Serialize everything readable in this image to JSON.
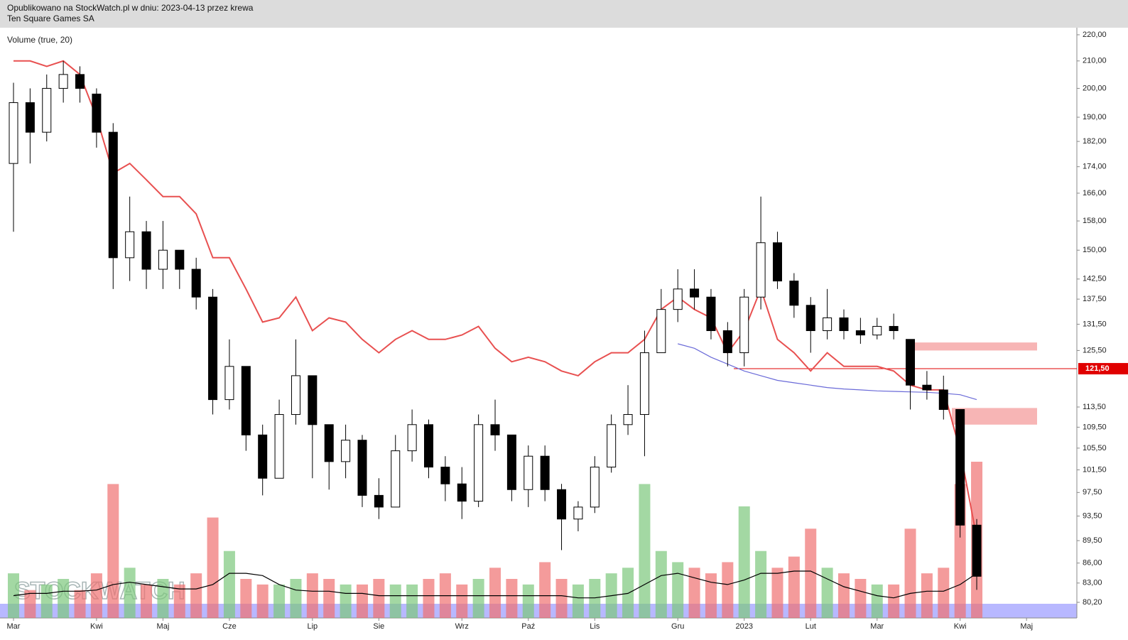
{
  "header": {
    "line1": "Opublikowano na StockWatch.pl w dniu: 2023-04-13 przez krewa",
    "line2": "Ten Square Games SA"
  },
  "chart_data": {
    "type": "candlestick",
    "log": true,
    "indicator_label": "Volume (true, 20)",
    "watermark": "STOCKWATCH",
    "categories": [
      "Mar",
      null,
      null,
      null,
      null,
      "Kwi",
      null,
      null,
      null,
      "Maj",
      null,
      null,
      null,
      "Cze",
      null,
      null,
      null,
      null,
      "Lip",
      null,
      null,
      null,
      "Sie",
      null,
      null,
      null,
      null,
      "Wrz",
      null,
      null,
      null,
      "Paź",
      null,
      null,
      null,
      "Lis",
      null,
      null,
      null,
      null,
      "Gru",
      null,
      null,
      null,
      "2023",
      null,
      null,
      null,
      "Lut",
      null,
      null,
      null,
      "Mar",
      null,
      null,
      null,
      null,
      "Kwi",
      null,
      null,
      null,
      "Maj"
    ],
    "open": [
      175,
      195,
      185,
      200,
      205,
      198,
      185,
      148,
      155,
      145,
      150,
      145,
      138,
      115,
      122,
      108,
      100,
      112,
      120,
      110,
      103,
      107,
      97,
      95,
      105,
      110,
      102,
      99,
      96,
      110,
      108,
      98,
      104,
      98,
      93,
      95,
      102,
      110,
      112,
      125,
      135,
      140,
      138,
      130,
      125,
      138,
      152,
      142,
      136,
      130,
      133,
      130,
      129,
      131,
      128,
      118,
      117,
      113,
      92,
      null,
      null,
      null
    ],
    "high": [
      202,
      200,
      205,
      210,
      208,
      200,
      188,
      165,
      158,
      158,
      150,
      148,
      140,
      128,
      122,
      110,
      115,
      128,
      120,
      110,
      110,
      108,
      100,
      108,
      113,
      111,
      104,
      102,
      112,
      115,
      108,
      106,
      106,
      99,
      96,
      104,
      112,
      118,
      130,
      140,
      145,
      145,
      140,
      132,
      140,
      165,
      155,
      144,
      138,
      140,
      135,
      133,
      133,
      134,
      128,
      121,
      120,
      113,
      93,
      null,
      null,
      null
    ],
    "low": [
      155,
      175,
      182,
      195,
      195,
      180,
      140,
      142,
      140,
      140,
      140,
      135,
      112,
      113,
      105,
      97,
      100,
      110,
      100,
      98,
      100,
      95,
      93,
      95,
      103,
      100,
      96,
      93,
      95,
      105,
      96,
      95,
      96,
      88,
      91,
      94,
      101,
      108,
      104,
      125,
      132,
      135,
      128,
      122,
      122,
      135,
      140,
      133,
      125,
      128,
      128,
      127,
      128,
      128,
      113,
      115,
      111,
      90,
      82,
      null,
      null,
      null
    ],
    "close": [
      195,
      185,
      200,
      205,
      200,
      185,
      148,
      155,
      145,
      150,
      145,
      138,
      115,
      122,
      108,
      100,
      112,
      120,
      110,
      103,
      107,
      97,
      95,
      105,
      110,
      102,
      99,
      96,
      110,
      108,
      98,
      104,
      98,
      93,
      95,
      102,
      110,
      112,
      125,
      135,
      140,
      138,
      130,
      125,
      138,
      152,
      142,
      136,
      130,
      133,
      130,
      129,
      131,
      130,
      118,
      117,
      113,
      92,
      84,
      null,
      null,
      null
    ],
    "overlays": [
      {
        "color": "#e85050",
        "values": [
          210,
          210,
          208,
          210,
          205,
          190,
          172,
          175,
          170,
          165,
          165,
          160,
          148,
          148,
          140,
          132,
          133,
          138,
          130,
          133,
          132,
          128,
          125,
          128,
          130,
          128,
          128,
          129,
          131,
          126,
          123,
          124,
          123,
          121,
          120,
          123,
          125,
          125,
          128,
          135,
          138,
          135,
          133,
          125,
          130,
          140,
          128,
          125,
          121,
          125,
          122,
          122,
          122,
          121,
          118,
          117,
          117,
          105,
          90,
          null,
          null,
          null
        ]
      },
      {
        "color": "#6a6ad8",
        "values": [
          null,
          null,
          null,
          null,
          null,
          null,
          null,
          null,
          null,
          null,
          null,
          null,
          null,
          null,
          null,
          null,
          null,
          null,
          null,
          null,
          null,
          null,
          null,
          null,
          null,
          null,
          null,
          null,
          null,
          null,
          null,
          null,
          null,
          null,
          null,
          null,
          null,
          null,
          null,
          null,
          127,
          126,
          124,
          122.5,
          121,
          120,
          119,
          118.5,
          118,
          117.5,
          117.2,
          117,
          116.8,
          116.7,
          116.6,
          116.5,
          116.3,
          116,
          115,
          null,
          null,
          null
        ]
      }
    ],
    "volume": {
      "up_color": "#7cc87c",
      "down_color": "#f07070",
      "average_color": "#000000",
      "values": [
        40,
        25,
        30,
        35,
        25,
        40,
        120,
        45,
        30,
        35,
        30,
        40,
        90,
        60,
        35,
        30,
        30,
        35,
        40,
        35,
        30,
        30,
        35,
        30,
        30,
        35,
        40,
        30,
        35,
        45,
        35,
        30,
        50,
        35,
        30,
        35,
        40,
        45,
        120,
        60,
        50,
        45,
        40,
        50,
        100,
        60,
        45,
        55,
        80,
        45,
        40,
        35,
        30,
        30,
        80,
        40,
        45,
        120,
        140,
        null,
        null,
        null
      ],
      "average": [
        20,
        22,
        22,
        24,
        24,
        25,
        30,
        32,
        30,
        28,
        26,
        26,
        30,
        40,
        40,
        38,
        30,
        25,
        24,
        24,
        22,
        22,
        20,
        20,
        20,
        20,
        20,
        20,
        20,
        20,
        20,
        20,
        20,
        20,
        18,
        18,
        20,
        22,
        30,
        38,
        40,
        36,
        32,
        30,
        34,
        40,
        40,
        42,
        42,
        35,
        28,
        24,
        20,
        18,
        22,
        24,
        24,
        30,
        40,
        null,
        null,
        null
      ]
    },
    "hline": {
      "value": 121.5,
      "label": "121,50",
      "color": "#e00000"
    },
    "zones": [
      {
        "from": 125.5,
        "to": 127.3,
        "color": "#f6a8a8"
      },
      {
        "from": 110,
        "to": 113.3,
        "color": "#f6a8a8"
      }
    ],
    "ylim": [
      78,
      222.5
    ],
    "yticks": [
      {
        "value": 220,
        "label": "220,00"
      },
      {
        "value": 210,
        "label": "210,00"
      },
      {
        "value": 200,
        "label": "200,00"
      },
      {
        "value": 190,
        "label": "190,00"
      },
      {
        "value": 182,
        "label": "182,00"
      },
      {
        "value": 174,
        "label": "174,00"
      },
      {
        "value": 166,
        "label": "166,00"
      },
      {
        "value": 158,
        "label": "158,00"
      },
      {
        "value": 150,
        "label": "150,00"
      },
      {
        "value": 142.5,
        "label": "142,50"
      },
      {
        "value": 137.5,
        "label": "137,50"
      },
      {
        "value": 131.5,
        "label": "131,50"
      },
      {
        "value": 125.5,
        "label": "125,50"
      },
      {
        "value": 113.5,
        "label": "113,50"
      },
      {
        "value": 109.5,
        "label": "109,50"
      },
      {
        "value": 105.5,
        "label": "105,50"
      },
      {
        "value": 101.5,
        "label": "101,50"
      },
      {
        "value": 97.5,
        "label": "97,50"
      },
      {
        "value": 93.5,
        "label": "93,50"
      },
      {
        "value": 89.5,
        "label": "89,50"
      },
      {
        "value": 86,
        "label": "86,00"
      },
      {
        "value": 83,
        "label": "83,00"
      },
      {
        "value": 80.2,
        "label": "80,20"
      }
    ]
  }
}
